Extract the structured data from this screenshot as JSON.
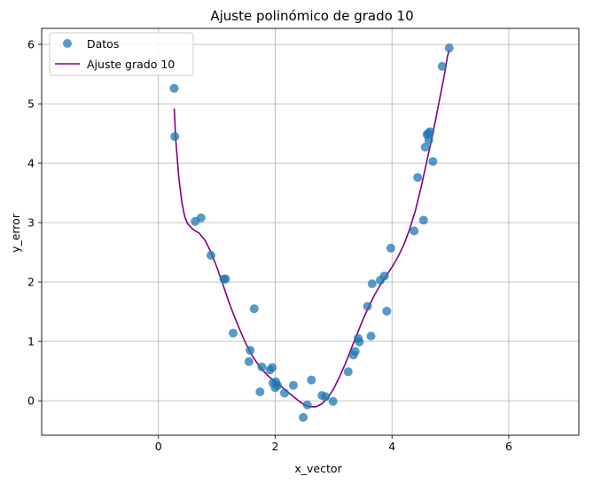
{
  "chart_data": {
    "type": "scatter",
    "title": "Ajuste polinómico de grado 10",
    "xlabel": "x_vector",
    "ylabel": "y_error",
    "xlim": [
      -2.0,
      7.2
    ],
    "ylim": [
      -0.58,
      6.27
    ],
    "xticks": [
      0,
      2,
      4,
      6
    ],
    "yticks": [
      0,
      1,
      2,
      3,
      4,
      5,
      6
    ],
    "grid": true,
    "legend_position": "top-left",
    "series": [
      {
        "name": "Datos",
        "kind": "scatter",
        "color": "#1f77b4",
        "points": [
          [
            0.27,
            5.26
          ],
          [
            0.28,
            4.45
          ],
          [
            0.63,
            3.02
          ],
          [
            0.73,
            3.08
          ],
          [
            0.9,
            2.45
          ],
          [
            1.12,
            2.05
          ],
          [
            1.15,
            2.05
          ],
          [
            1.28,
            1.14
          ],
          [
            1.55,
            0.66
          ],
          [
            1.57,
            0.85
          ],
          [
            1.64,
            1.55
          ],
          [
            1.74,
            0.15
          ],
          [
            1.77,
            0.57
          ],
          [
            1.91,
            0.52
          ],
          [
            1.95,
            0.56
          ],
          [
            1.96,
            0.3
          ],
          [
            2.0,
            0.22
          ],
          [
            2.01,
            0.32
          ],
          [
            2.04,
            0.26
          ],
          [
            2.16,
            0.13
          ],
          [
            2.31,
            0.26
          ],
          [
            2.48,
            -0.28
          ],
          [
            2.55,
            -0.07
          ],
          [
            2.62,
            0.35
          ],
          [
            2.8,
            0.09
          ],
          [
            2.86,
            0.07
          ],
          [
            2.99,
            -0.01
          ],
          [
            3.25,
            0.49
          ],
          [
            3.34,
            0.77
          ],
          [
            3.37,
            0.83
          ],
          [
            3.42,
            1.05
          ],
          [
            3.44,
            0.99
          ],
          [
            3.58,
            1.59
          ],
          [
            3.64,
            1.09
          ],
          [
            3.66,
            1.97
          ],
          [
            3.8,
            2.03
          ],
          [
            3.87,
            2.1
          ],
          [
            3.91,
            1.51
          ],
          [
            3.98,
            2.57
          ],
          [
            4.38,
            2.86
          ],
          [
            4.44,
            3.76
          ],
          [
            4.54,
            3.04
          ],
          [
            4.57,
            4.27
          ],
          [
            4.6,
            4.48
          ],
          [
            4.62,
            4.5
          ],
          [
            4.63,
            4.39
          ],
          [
            4.65,
            4.53
          ],
          [
            4.7,
            4.03
          ],
          [
            4.86,
            5.63
          ],
          [
            4.98,
            5.94
          ]
        ]
      },
      {
        "name": "Ajuste grado 10",
        "kind": "line",
        "color": "#800080",
        "points": [
          [
            0.27,
            4.92
          ],
          [
            0.3,
            4.35
          ],
          [
            0.35,
            3.75
          ],
          [
            0.4,
            3.35
          ],
          [
            0.45,
            3.1
          ],
          [
            0.5,
            2.98
          ],
          [
            0.6,
            2.88
          ],
          [
            0.7,
            2.82
          ],
          [
            0.8,
            2.7
          ],
          [
            0.9,
            2.5
          ],
          [
            1.0,
            2.25
          ],
          [
            1.1,
            1.97
          ],
          [
            1.2,
            1.68
          ],
          [
            1.3,
            1.42
          ],
          [
            1.4,
            1.18
          ],
          [
            1.5,
            0.96
          ],
          [
            1.6,
            0.77
          ],
          [
            1.7,
            0.62
          ],
          [
            1.8,
            0.5
          ],
          [
            1.9,
            0.4
          ],
          [
            2.0,
            0.32
          ],
          [
            2.1,
            0.24
          ],
          [
            2.2,
            0.16
          ],
          [
            2.3,
            0.08
          ],
          [
            2.4,
            0.0
          ],
          [
            2.5,
            -0.07
          ],
          [
            2.6,
            -0.1
          ],
          [
            2.7,
            -0.1
          ],
          [
            2.8,
            -0.05
          ],
          [
            2.9,
            0.05
          ],
          [
            3.0,
            0.2
          ],
          [
            3.1,
            0.4
          ],
          [
            3.2,
            0.62
          ],
          [
            3.3,
            0.87
          ],
          [
            3.4,
            1.12
          ],
          [
            3.5,
            1.36
          ],
          [
            3.6,
            1.58
          ],
          [
            3.7,
            1.78
          ],
          [
            3.8,
            1.95
          ],
          [
            3.9,
            2.1
          ],
          [
            4.0,
            2.25
          ],
          [
            4.1,
            2.42
          ],
          [
            4.2,
            2.62
          ],
          [
            4.3,
            2.88
          ],
          [
            4.4,
            3.2
          ],
          [
            4.5,
            3.6
          ],
          [
            4.6,
            4.05
          ],
          [
            4.7,
            4.5
          ],
          [
            4.8,
            5.0
          ],
          [
            4.9,
            5.5
          ],
          [
            4.95,
            5.8
          ],
          [
            4.98,
            5.9
          ]
        ]
      }
    ]
  }
}
